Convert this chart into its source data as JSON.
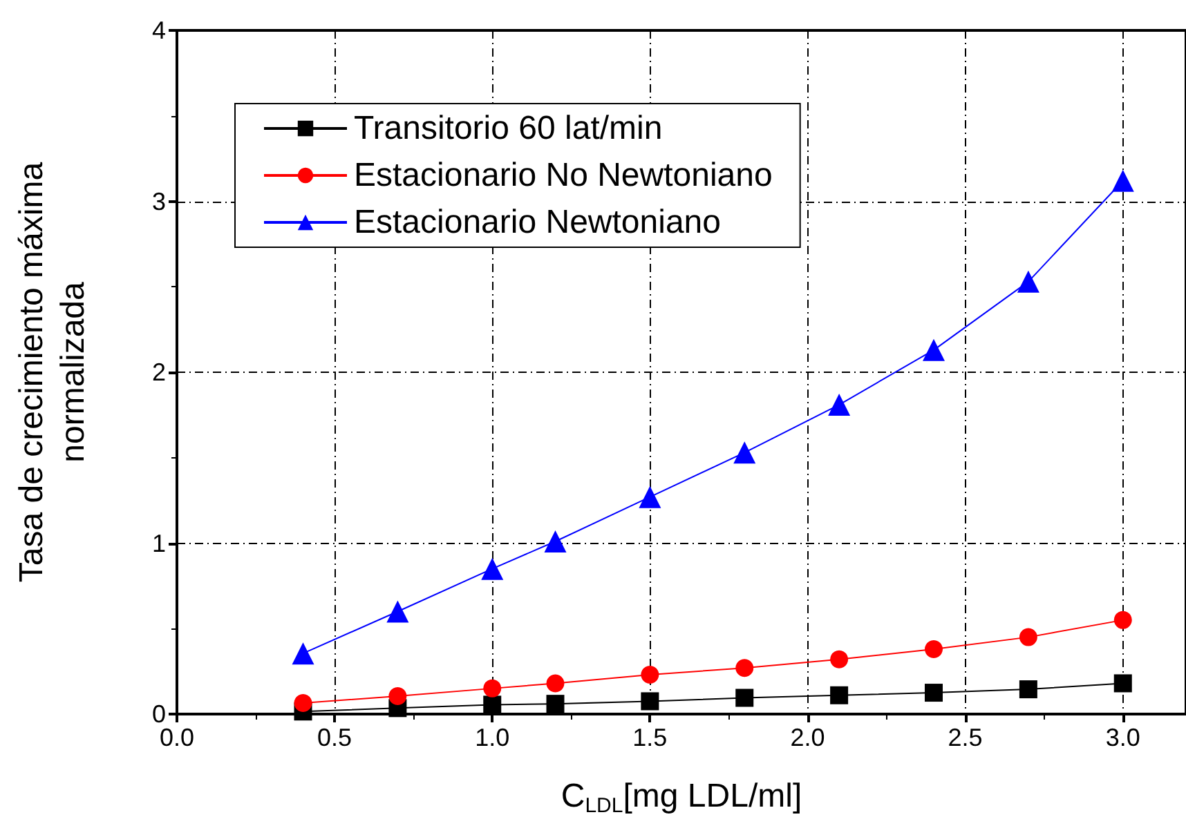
{
  "chart_data": {
    "type": "line",
    "xlabel": "C$_{LDL}$[mg LDL/ml]",
    "ylabel": "Tasa de crecimiento máxima\nnormalizada",
    "x": [
      0.4,
      0.7,
      1.0,
      1.2,
      1.5,
      1.8,
      2.1,
      2.4,
      2.7,
      3.0
    ],
    "series": [
      {
        "name": "Transitorio 60 lat/min",
        "color": "#000000",
        "marker": "square",
        "values": [
          0.015,
          0.035,
          0.055,
          0.06,
          0.075,
          0.095,
          0.11,
          0.125,
          0.145,
          0.18
        ]
      },
      {
        "name": "Estacionario No Newtoniano",
        "color": "#ff0000",
        "marker": "circle",
        "values": [
          0.065,
          0.105,
          0.15,
          0.18,
          0.23,
          0.27,
          0.32,
          0.38,
          0.45,
          0.55
        ]
      },
      {
        "name": "Estacionario Newtoniano",
        "color": "#0000ff",
        "marker": "triangle",
        "values": [
          0.355,
          0.6,
          0.85,
          1.01,
          1.27,
          1.53,
          1.81,
          2.13,
          2.53,
          3.12
        ]
      }
    ],
    "xlim": [
      0,
      3.2
    ],
    "xticks": [
      {
        "value": 0,
        "label": "0.0"
      },
      0.5,
      {
        "value": 1,
        "label": "1.0"
      },
      1.5,
      {
        "value": 2,
        "label": "2.0"
      },
      2.5,
      {
        "value": 3,
        "label": "3.0"
      }
    ],
    "ylim": [
      0,
      4
    ],
    "yticks": [
      0,
      1,
      2,
      3,
      4
    ],
    "grid": true,
    "legend": "top left",
    "line_style": "solid"
  }
}
